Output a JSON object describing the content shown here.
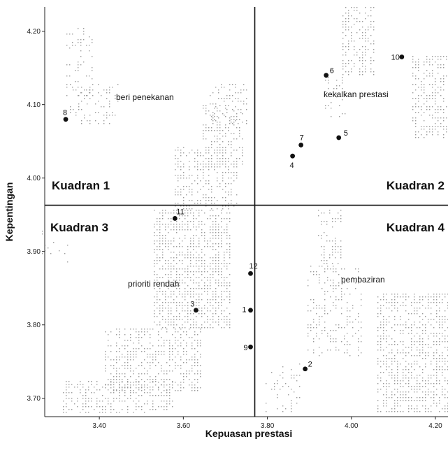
{
  "chart_data": {
    "type": "scatter",
    "xlabel": "Kepuasan prestasi",
    "ylabel": "Kepentingan",
    "xlim": [
      3.27,
      4.23
    ],
    "ylim": [
      3.675,
      4.233
    ],
    "x_ticks": [
      3.4,
      3.6,
      3.8,
      4.0,
      4.2
    ],
    "x_tick_labels": [
      "3.40",
      "3.60",
      "3.80",
      "4.00",
      "4.20"
    ],
    "y_ticks": [
      3.7,
      3.8,
      3.9,
      4.0,
      4.1,
      4.2
    ],
    "y_tick_labels": [
      "3.70",
      "3.80",
      "3.90",
      "4.00",
      "4.10",
      "4.20"
    ],
    "divider_x": 3.77,
    "divider_y": 3.963,
    "quadrants": [
      {
        "name": "Kuadran 1",
        "description": "beri penekanan"
      },
      {
        "name": "Kuadran 2",
        "description": "kekalkan prestasi"
      },
      {
        "name": "Kuadran 3",
        "description": "prioriti rendah"
      },
      {
        "name": "Kuadran 4",
        "description": "pembaziran"
      }
    ],
    "points": [
      {
        "label": "1",
        "x": 3.76,
        "y": 3.82
      },
      {
        "label": "2",
        "x": 3.89,
        "y": 3.74
      },
      {
        "label": "3",
        "x": 3.63,
        "y": 3.82
      },
      {
        "label": "4",
        "x": 3.86,
        "y": 4.03
      },
      {
        "label": "5",
        "x": 3.97,
        "y": 4.055
      },
      {
        "label": "6",
        "x": 3.94,
        "y": 4.14
      },
      {
        "label": "7",
        "x": 3.88,
        "y": 4.045
      },
      {
        "label": "8",
        "x": 3.32,
        "y": 4.08
      },
      {
        "label": "9",
        "x": 3.76,
        "y": 3.77
      },
      {
        "label": "10",
        "x": 4.12,
        "y": 4.165
      },
      {
        "label": "11",
        "x": 3.58,
        "y": 3.945
      },
      {
        "label": "12",
        "x": 3.76,
        "y": 3.87
      }
    ]
  }
}
